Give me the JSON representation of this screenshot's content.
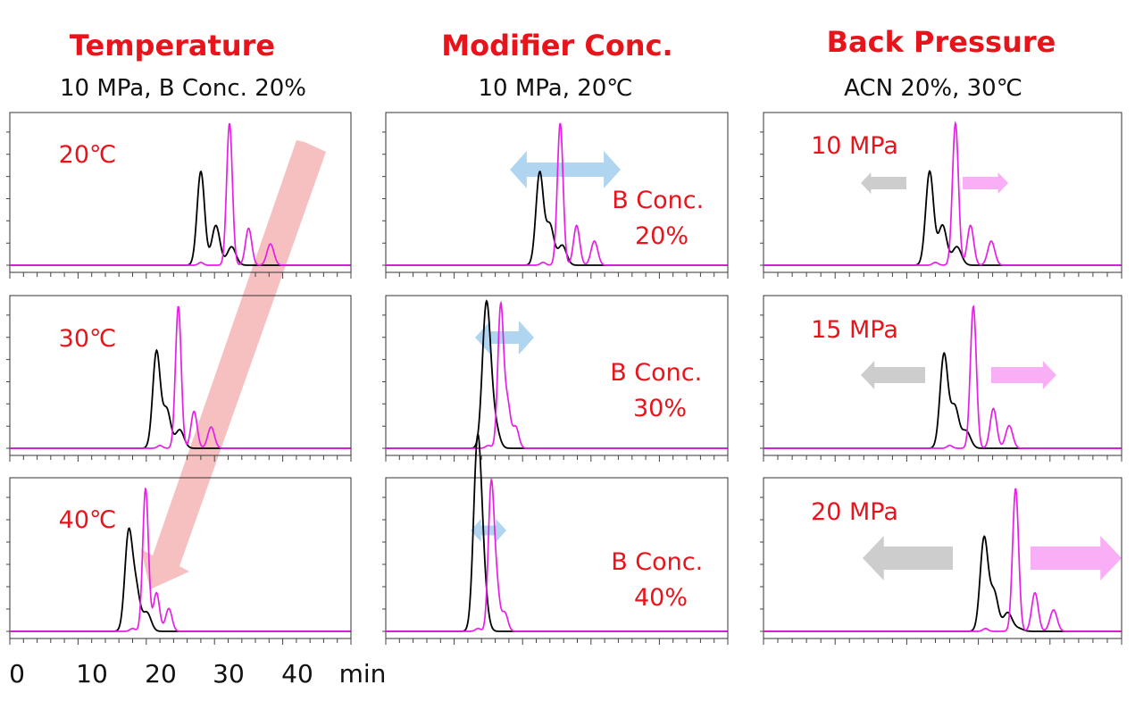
{
  "colors": {
    "title": "#e8141c",
    "label": "#e8141c",
    "trace_a": "#000000",
    "trace_b": "#e61ee6",
    "arrow_temp": "#f4a8a8",
    "arrow_mod": "#9ccaee",
    "arrow_left": "#c8c8c8",
    "arrow_right": "#f8a6f5"
  },
  "columns": [
    {
      "title": "Temperature",
      "subtitle": "10 MPa, B Conc. 20%"
    },
    {
      "title": "Modifier Conc.",
      "subtitle": "10 MPa, 20℃"
    },
    {
      "title": "Back Pressure",
      "subtitle": "ACN 20%, 30℃"
    }
  ],
  "x_axis": {
    "ticks": [
      "0",
      "10",
      "20",
      "30",
      "40"
    ],
    "unit": "min"
  },
  "chart_data": [
    {
      "type": "line",
      "column": "Temperature",
      "condition": "20℃",
      "x_unit": "min",
      "xlim": [
        0,
        50
      ],
      "series": [
        {
          "peaks": [
            [
              28.0,
              0.66
            ],
            [
              30.2,
              0.28
            ],
            [
              32.5,
              0.13
            ]
          ]
        },
        {
          "peaks": [
            [
              32.2,
              1.0
            ],
            [
              35.0,
              0.26
            ],
            [
              38.2,
              0.15
            ],
            [
              28.0,
              0.02
            ]
          ]
        }
      ]
    },
    {
      "type": "line",
      "column": "Temperature",
      "condition": "30℃",
      "x_unit": "min",
      "xlim": [
        0,
        50
      ],
      "series": [
        {
          "peaks": [
            [
              21.5,
              0.68
            ],
            [
              23.0,
              0.27
            ],
            [
              24.9,
              0.13
            ]
          ]
        },
        {
          "peaks": [
            [
              24.7,
              1.0
            ],
            [
              27.0,
              0.26
            ],
            [
              29.5,
              0.15
            ],
            [
              22.0,
              0.02
            ]
          ]
        }
      ]
    },
    {
      "type": "line",
      "column": "Temperature",
      "condition": "40℃",
      "x_unit": "min",
      "xlim": [
        0,
        50
      ],
      "series": [
        {
          "peaks": [
            [
              17.4,
              0.67
            ],
            [
              18.5,
              0.29
            ],
            [
              20.1,
              0.13
            ]
          ]
        },
        {
          "peaks": [
            [
              19.9,
              1.0
            ],
            [
              21.5,
              0.27
            ],
            [
              23.3,
              0.16
            ],
            [
              18.0,
              0.02
            ]
          ]
        }
      ]
    },
    {
      "type": "line",
      "column": "Modifier Conc.",
      "condition": "B Conc. 20%",
      "x_unit": "min",
      "xlim": [
        0,
        50
      ],
      "series": [
        {
          "peaks": [
            [
              22.5,
              0.65
            ],
            [
              24.0,
              0.28
            ],
            [
              25.8,
              0.14
            ]
          ]
        },
        {
          "peaks": [
            [
              25.5,
              1.0
            ],
            [
              27.9,
              0.28
            ],
            [
              30.5,
              0.17
            ],
            [
              23.0,
              0.02
            ]
          ]
        }
      ]
    },
    {
      "type": "line",
      "column": "Modifier Conc.",
      "condition": "B Conc. 30%",
      "x_unit": "min",
      "xlim": [
        0,
        50
      ],
      "series": [
        {
          "peaks": [
            [
              14.6,
              0.82
            ],
            [
              15.2,
              0.33
            ],
            [
              16.1,
              0.12
            ]
          ]
        },
        {
          "peaks": [
            [
              16.8,
              1.0
            ],
            [
              17.8,
              0.31
            ],
            [
              19.0,
              0.15
            ],
            [
              15.0,
              0.02
            ]
          ]
        }
      ]
    },
    {
      "type": "line",
      "column": "Modifier Conc.",
      "condition": "B Conc. 40%",
      "x_unit": "min",
      "xlim": [
        0,
        50
      ],
      "series": [
        {
          "peaks": [
            [
              13.3,
              1.0
            ],
            [
              13.8,
              0.45
            ],
            [
              14.4,
              0.18
            ]
          ]
        },
        {
          "peaks": [
            [
              15.4,
              1.0
            ],
            [
              16.2,
              0.31
            ],
            [
              17.4,
              0.13
            ],
            [
              13.5,
              0.02
            ]
          ]
        }
      ]
    },
    {
      "type": "line",
      "column": "Back Pressure",
      "condition": "10 MPa",
      "x_unit": "min",
      "xlim": [
        0,
        50
      ],
      "series": [
        {
          "peaks": [
            [
              23.2,
              0.66
            ],
            [
              25.0,
              0.28
            ],
            [
              27.0,
              0.13
            ]
          ]
        },
        {
          "peaks": [
            [
              26.8,
              1.0
            ],
            [
              28.9,
              0.28
            ],
            [
              31.8,
              0.17
            ],
            [
              24.0,
              0.02
            ]
          ]
        }
      ]
    },
    {
      "type": "line",
      "column": "Back Pressure",
      "condition": "15 MPa",
      "x_unit": "min",
      "xlim": [
        0,
        50
      ],
      "series": [
        {
          "peaks": [
            [
              25.2,
              0.66
            ],
            [
              26.7,
              0.29
            ],
            [
              28.3,
              0.12
            ]
          ]
        },
        {
          "peaks": [
            [
              29.3,
              1.0
            ],
            [
              32.1,
              0.28
            ],
            [
              34.3,
              0.16
            ],
            [
              26.0,
              0.02
            ]
          ]
        }
      ]
    },
    {
      "type": "line",
      "column": "Back Pressure",
      "condition": "20 MPa",
      "x_unit": "min",
      "xlim": [
        0,
        50
      ],
      "series": [
        {
          "peaks": [
            [
              30.8,
              0.65
            ],
            [
              32.2,
              0.27
            ],
            [
              34.1,
              0.13
            ],
            [
              35.6,
              0.02
            ]
          ]
        },
        {
          "peaks": [
            [
              35.2,
              1.0
            ],
            [
              37.9,
              0.27
            ],
            [
              40.5,
              0.15
            ],
            [
              31.0,
              0.02
            ]
          ]
        }
      ]
    }
  ]
}
